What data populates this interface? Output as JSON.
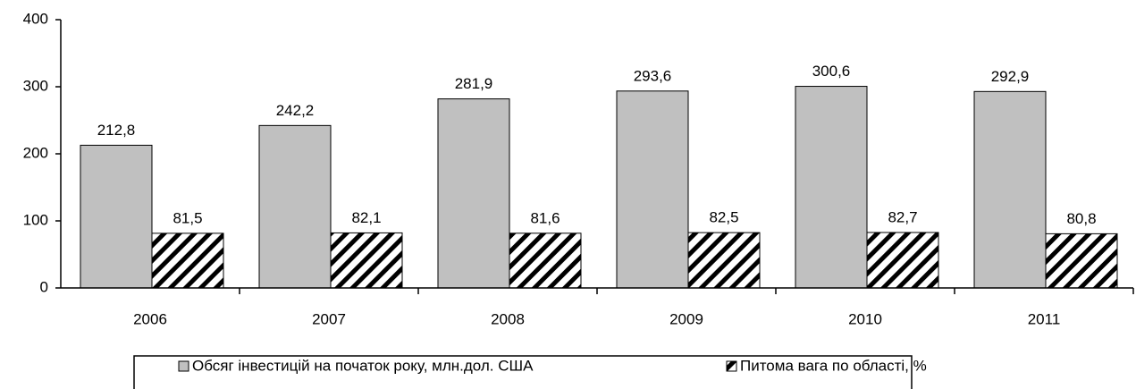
{
  "chart_data": {
    "type": "bar",
    "categories": [
      "2006",
      "2007",
      "2008",
      "2009",
      "2010",
      "2011"
    ],
    "series": [
      {
        "name": "Обсяг інвестицій на початок року, млн.дол. США",
        "color": "#c0c0c0",
        "hatch": false,
        "values": [
          212.8,
          242.2,
          281.9,
          293.6,
          300.6,
          292.9
        ],
        "value_labels": [
          "212,8",
          "242,2",
          "281,9",
          "293,6",
          "300,6",
          "292,9"
        ]
      },
      {
        "name": "Питома вага по області, %",
        "color": "#000000",
        "hatch": true,
        "values": [
          81.5,
          82.1,
          81.6,
          82.5,
          82.7,
          80.8
        ],
        "value_labels": [
          "81,5",
          "82,1",
          "81,6",
          "82,5",
          "82,7",
          "80,8"
        ]
      }
    ],
    "ylim": [
      0,
      400
    ],
    "yticks": [
      0,
      100,
      200,
      300,
      400
    ],
    "grid": false,
    "legend": "bottom"
  }
}
